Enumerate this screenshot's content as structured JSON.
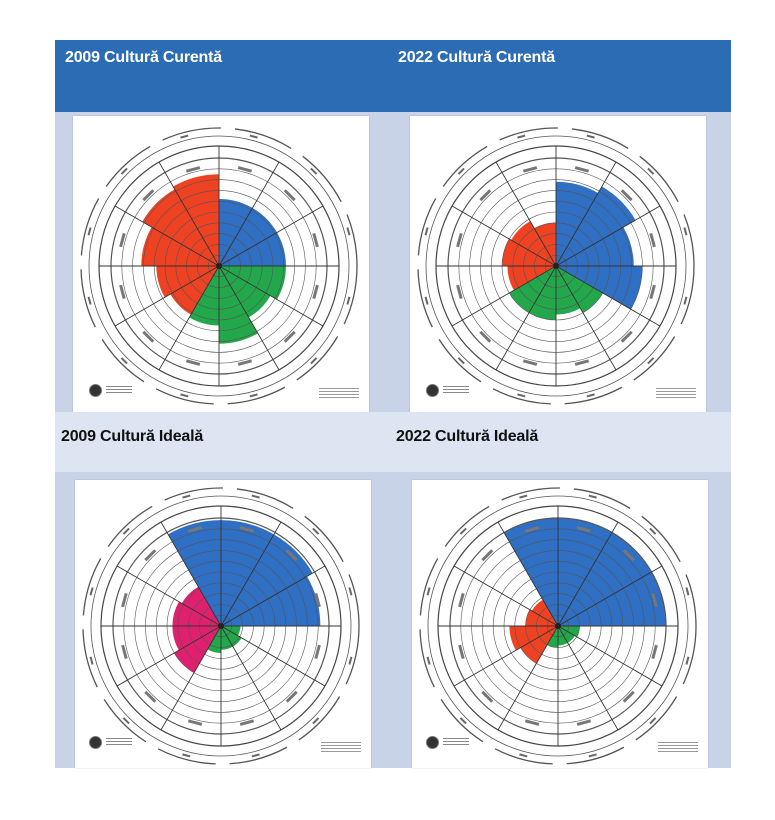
{
  "headers": {
    "top_left": "2009 Cultură Curentă",
    "top_right": "2022 Cultură Curentă",
    "bottom_left": "2009 Cultură Ideală",
    "bottom_right": "2022 Cultură Ideală"
  },
  "colors": {
    "header_blue": "#2c6cb4",
    "panel_background": "#c8d3e7",
    "subheader_background": "#dde4f2",
    "constructive": "#2f6fc4",
    "passive_defensive": "#22a84a",
    "aggressive_defensive": "#ef4223",
    "aggressive_defensive_ideal_2009": "#e0206e"
  },
  "circumplex_charts": [
    {
      "title": "2009 Cultură Curentă",
      "segments": [
        0.62,
        0.62,
        0.62,
        0.62,
        0.55,
        0.72,
        0.55,
        0.52,
        0.58,
        0.72,
        0.82,
        0.85
      ],
      "colors": [
        "blue",
        "blue",
        "blue",
        "green",
        "green",
        "green",
        "green",
        "red",
        "red",
        "red",
        "red",
        "red"
      ]
    },
    {
      "title": "2022 Cultură Curentă",
      "segments": [
        0.78,
        0.85,
        0.72,
        0.8,
        0.5,
        0.45,
        0.5,
        0.5,
        0.45,
        0.5,
        0.48,
        0.4
      ],
      "colors": [
        "blue",
        "blue",
        "blue",
        "blue",
        "green",
        "green",
        "green",
        "green",
        "red",
        "red",
        "red",
        "red"
      ]
    },
    {
      "title": "2009 Cultură Ideală",
      "segments": [
        0.98,
        0.98,
        0.98,
        0.92,
        0.18,
        0.22,
        0.22,
        0.25,
        0.5,
        0.45,
        0.45,
        0.42
      ],
      "colors": [
        "blue",
        "blue",
        "blue",
        "blue",
        "green",
        "green",
        "green",
        "green",
        "pink",
        "pink",
        "pink",
        "pink"
      ]
    },
    {
      "title": "2022 Cultură Ideală",
      "segments": [
        1.0,
        1.0,
        1.0,
        1.0,
        0.2,
        0.18,
        0.18,
        0.2,
        0.4,
        0.45,
        0.3,
        0.28
      ],
      "colors": [
        "blue",
        "blue",
        "blue",
        "blue",
        "green",
        "green",
        "green",
        "green",
        "red",
        "red",
        "red",
        "red"
      ]
    }
  ]
}
